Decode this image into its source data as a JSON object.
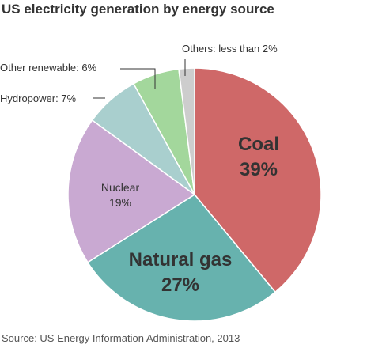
{
  "title": "US electricity generation by energy source",
  "source": "Source: US Energy Information Administration, 2013",
  "colors": {
    "coal": "#cf6868",
    "natural_gas": "#67b2ae",
    "nuclear": "#c9a9d2",
    "hydropower": "#a9cfce",
    "other_renewable": "#a3d79c",
    "others": "#cdcdcd",
    "stroke": "#ffffff",
    "leader": "#333333",
    "text": "#333333"
  },
  "chart_data": {
    "type": "pie",
    "title": "US electricity generation by energy source",
    "slices": [
      {
        "key": "coal",
        "lines": [
          "Coal",
          "39%"
        ],
        "value": 39
      },
      {
        "key": "natural_gas",
        "lines": [
          "Natural gas",
          "27%"
        ],
        "value": 27
      },
      {
        "key": "nuclear",
        "lines": [
          "Nuclear",
          "19%"
        ],
        "value": 19
      },
      {
        "key": "hydropower",
        "label": "Hydropower: 7%",
        "value": 7
      },
      {
        "key": "other_renewable",
        "label": "Other renewable: 6%",
        "value": 6
      },
      {
        "key": "others",
        "label": "Others: less than 2%",
        "value": 2
      }
    ]
  }
}
